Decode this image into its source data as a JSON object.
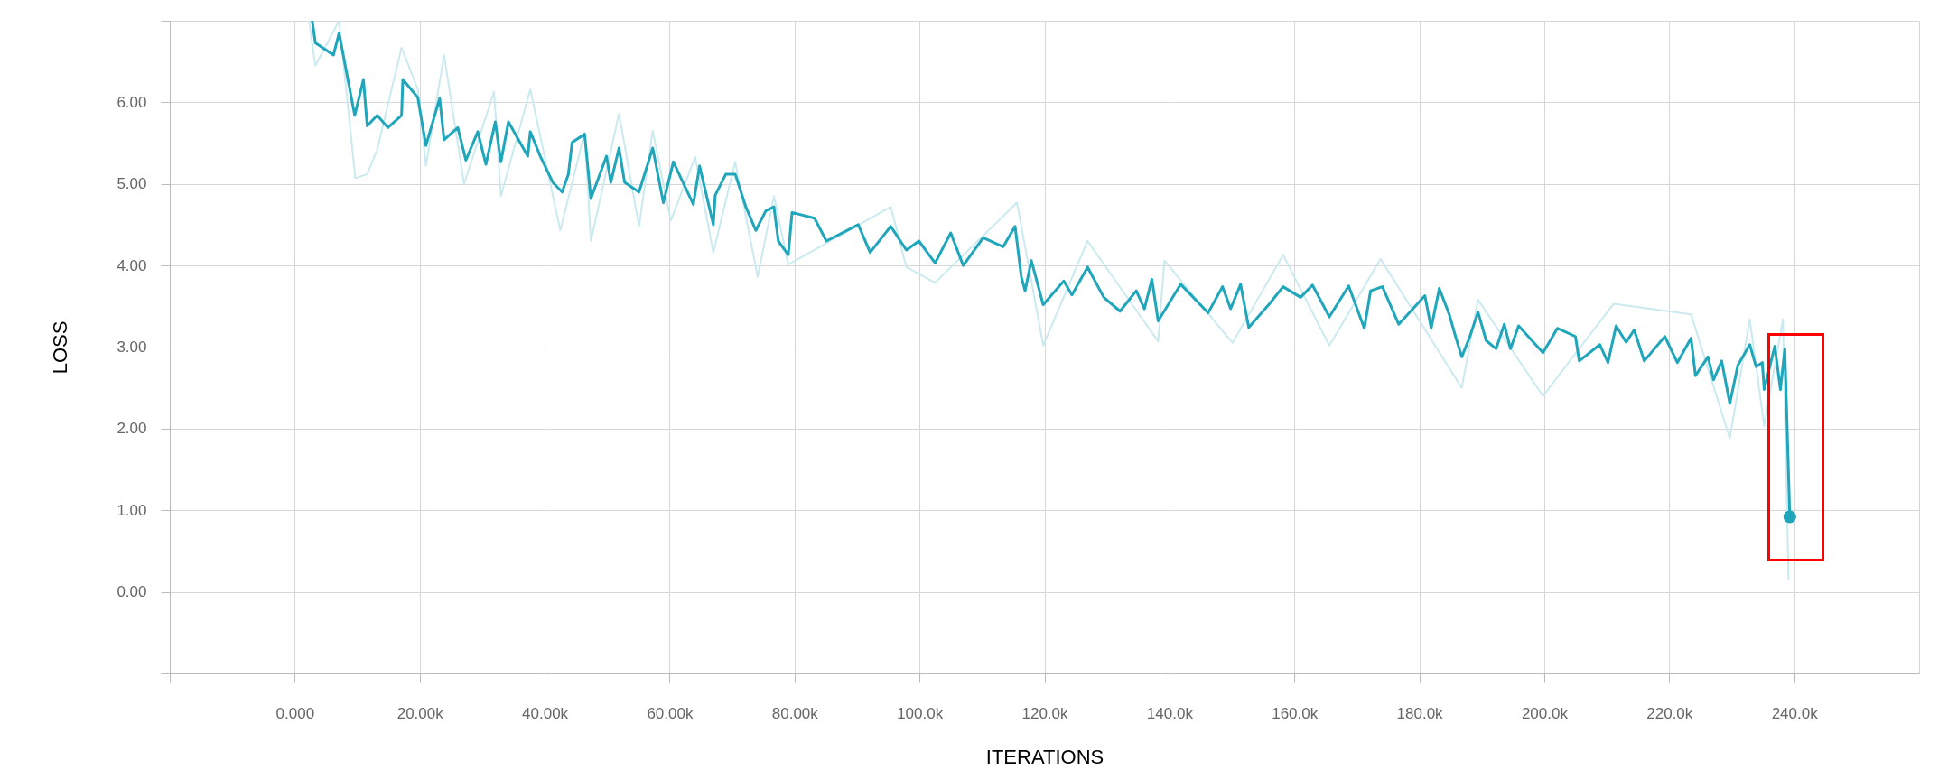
{
  "chart_data": {
    "type": "line",
    "xlabel": "ITERATIONS",
    "ylabel": "LOSS",
    "xlim": [
      -20000,
      260000
    ],
    "ylim": [
      -1,
      7
    ],
    "xticks": [
      {
        "value": -20000,
        "label": null
      },
      {
        "value": 0,
        "label": "0.000"
      },
      {
        "value": 20000,
        "label": "20.00k"
      },
      {
        "value": 40000,
        "label": "40.00k"
      },
      {
        "value": 60000,
        "label": "60.00k"
      },
      {
        "value": 80000,
        "label": "80.00k"
      },
      {
        "value": 100000,
        "label": "100.0k"
      },
      {
        "value": 120000,
        "label": "120.0k"
      },
      {
        "value": 140000,
        "label": "140.0k"
      },
      {
        "value": 160000,
        "label": "160.0k"
      },
      {
        "value": 180000,
        "label": "180.0k"
      },
      {
        "value": 200000,
        "label": "200.0k"
      },
      {
        "value": 220000,
        "label": "220.0k"
      },
      {
        "value": 240000,
        "label": "240.0k"
      }
    ],
    "yticks": [
      {
        "value": -1,
        "label": null
      },
      {
        "value": 0,
        "label": "0.00"
      },
      {
        "value": 1,
        "label": "1.00"
      },
      {
        "value": 2,
        "label": "2.00"
      },
      {
        "value": 3,
        "label": "3.00"
      },
      {
        "value": 4,
        "label": "4.00"
      },
      {
        "value": 5,
        "label": "5.00"
      },
      {
        "value": 6,
        "label": "6.00"
      },
      {
        "value": 7,
        "label": null
      }
    ],
    "grid": true,
    "marker": "none",
    "line_style": "solid",
    "series": [
      {
        "color": "#cbeaf0",
        "x": [
          2300,
          3300,
          7100,
          9700,
          11600,
          13200,
          17100,
          19700,
          21000,
          23900,
          27100,
          31900,
          33000,
          37700,
          42500,
          46400,
          47400,
          51900,
          55100,
          57300,
          60200,
          64100,
          67000,
          70500,
          74100,
          76700,
          79000,
          95400,
          97900,
          102500,
          115600,
          119800,
          126900,
          138200,
          139200,
          150100,
          158200,
          165600,
          173800,
          186800,
          189400,
          199800,
          211100,
          223500,
          229700,
          232900,
          235200,
          238200,
          239100
        ],
        "values": [
          7.0,
          6.45,
          7.0,
          5.07,
          5.12,
          5.42,
          6.67,
          6.16,
          5.22,
          6.58,
          5.0,
          6.13,
          4.85,
          6.16,
          4.43,
          5.63,
          4.3,
          5.86,
          4.48,
          5.65,
          4.55,
          5.33,
          4.16,
          5.27,
          3.86,
          4.85,
          4.01,
          4.72,
          3.98,
          3.79,
          4.77,
          3.02,
          4.3,
          3.07,
          4.06,
          3.05,
          4.13,
          3.02,
          4.08,
          2.5,
          3.58,
          2.4,
          3.53,
          3.4,
          1.88,
          3.34,
          2.03,
          3.34,
          0.16
        ]
      },
      {
        "color": "#1fa6bb",
        "x": [
          2800,
          3300,
          6200,
          7100,
          9600,
          11000,
          11600,
          13200,
          14900,
          17100,
          17300,
          19700,
          21000,
          23200,
          23900,
          26100,
          27400,
          29300,
          30600,
          32100,
          33000,
          34200,
          37300,
          37700,
          39300,
          41300,
          42800,
          43800,
          44400,
          46400,
          47400,
          49900,
          50600,
          51900,
          52800,
          55100,
          57300,
          59000,
          60600,
          63800,
          64800,
          67000,
          67300,
          69000,
          70500,
          72200,
          73800,
          75400,
          76700,
          77400,
          79000,
          79600,
          83200,
          85100,
          90200,
          92100,
          95400,
          97900,
          99900,
          102500,
          105000,
          107000,
          110200,
          113400,
          115300,
          116300,
          116900,
          117900,
          119800,
          123100,
          124400,
          126900,
          129500,
          132100,
          134700,
          136000,
          137200,
          138200,
          141800,
          146200,
          148500,
          149800,
          151400,
          152700,
          155900,
          158200,
          161000,
          162900,
          165600,
          168700,
          171200,
          172200,
          174100,
          176700,
          180900,
          181900,
          183200,
          184800,
          185800,
          186800,
          188100,
          189400,
          190700,
          192300,
          193600,
          194600,
          195900,
          199800,
          202100,
          205000,
          205600,
          208900,
          210200,
          211500,
          213100,
          214400,
          216000,
          219300,
          221300,
          223500,
          224200,
          226200,
          227100,
          228400,
          229700,
          231000,
          232900,
          233900,
          234900,
          235200,
          236900,
          237800,
          238500,
          239300
        ],
        "values": [
          7.0,
          6.73,
          6.58,
          6.85,
          5.84,
          6.28,
          5.71,
          5.84,
          5.69,
          5.84,
          6.28,
          6.06,
          5.47,
          6.05,
          5.54,
          5.69,
          5.29,
          5.64,
          5.24,
          5.76,
          5.27,
          5.76,
          5.34,
          5.64,
          5.34,
          5.02,
          4.9,
          5.12,
          5.51,
          5.61,
          4.82,
          5.34,
          5.02,
          5.44,
          5.02,
          4.9,
          5.44,
          4.77,
          5.27,
          4.75,
          5.22,
          4.5,
          4.86,
          5.12,
          5.12,
          4.72,
          4.43,
          4.67,
          4.72,
          4.3,
          4.13,
          4.65,
          4.58,
          4.3,
          4.5,
          4.16,
          4.48,
          4.19,
          4.3,
          4.03,
          4.4,
          4.0,
          4.34,
          4.23,
          4.48,
          3.86,
          3.69,
          4.06,
          3.52,
          3.81,
          3.64,
          3.98,
          3.61,
          3.44,
          3.69,
          3.47,
          3.83,
          3.32,
          3.77,
          3.42,
          3.74,
          3.47,
          3.77,
          3.24,
          3.52,
          3.74,
          3.61,
          3.76,
          3.37,
          3.75,
          3.23,
          3.69,
          3.74,
          3.28,
          3.63,
          3.23,
          3.72,
          3.4,
          3.13,
          2.88,
          3.13,
          3.43,
          3.08,
          2.98,
          3.28,
          2.98,
          3.26,
          2.93,
          3.23,
          3.13,
          2.83,
          3.03,
          2.81,
          3.26,
          3.06,
          3.21,
          2.83,
          3.13,
          2.81,
          3.11,
          2.65,
          2.88,
          2.6,
          2.83,
          2.31,
          2.78,
          3.03,
          2.76,
          2.81,
          2.48,
          3.01,
          2.48,
          2.98,
          0.92
        ]
      },
      {
        "type": "scatter",
        "color": "#1fa6bb",
        "marker": "circle",
        "x": [
          239300
        ],
        "values": [
          0.92
        ]
      }
    ]
  }
}
